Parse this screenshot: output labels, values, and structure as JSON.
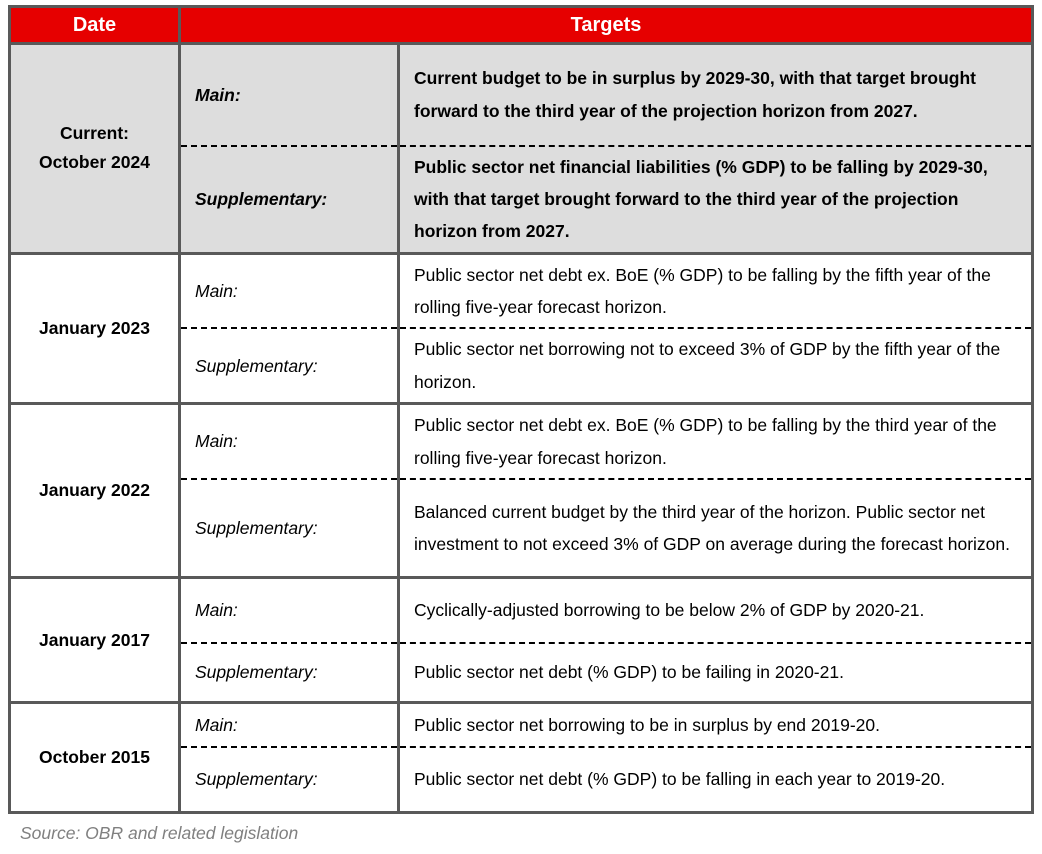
{
  "table": {
    "header": {
      "date": "Date",
      "targets": "Targets"
    },
    "rows": [
      {
        "date_lines": [
          "Current:",
          "October 2024"
        ],
        "main_label": "Main:",
        "main_text": "Current budget to be in surplus by 2029-30, with that target brought forward to the third year of the projection horizon from 2027.",
        "supplementary_label": "Supplementary:",
        "supplementary_text": "Public sector net financial liabilities (% GDP) to be falling by 2029-30, with that target brought forward to the third year of the projection horizon from 2027."
      },
      {
        "date_lines": [
          "January 2023"
        ],
        "main_label": "Main:",
        "main_text": "Public sector net debt ex. BoE (% GDP) to be falling by the fifth year of the rolling five-year forecast horizon.",
        "supplementary_label": "Supplementary:",
        "supplementary_text": "Public sector net borrowing not to exceed 3% of GDP by the fifth year of the horizon."
      },
      {
        "date_lines": [
          "January 2022"
        ],
        "main_label": "Main:",
        "main_text": "Public sector net debt ex. BoE (% GDP) to be falling by the third year of the rolling five-year forecast horizon.",
        "supplementary_label": "Supplementary:",
        "supplementary_text": "Balanced current budget by the third year of the horizon. Public sector net investment to not exceed 3% of GDP on average during the forecast horizon."
      },
      {
        "date_lines": [
          "January 2017"
        ],
        "main_label": "Main:",
        "main_text": "Cyclically-adjusted borrowing to be below 2% of GDP by 2020-21.",
        "supplementary_label": "Supplementary:",
        "supplementary_text": "Public sector net debt (% GDP) to be failing in 2020-21."
      },
      {
        "date_lines": [
          "October 2015"
        ],
        "main_label": "Main:",
        "main_text": "Public sector net borrowing to be in surplus by end 2019-20.",
        "supplementary_label": "Supplementary:",
        "supplementary_text": "Public sector net debt (% GDP) to be falling in each year to 2019-20."
      }
    ]
  },
  "footer": {
    "source": "Source: OBR and related legislation"
  },
  "colors": {
    "header_red": "#E60000",
    "header_text": "#FFFFFF",
    "current_row_bg": "#DDDDDD",
    "border_gray": "#595959",
    "dashed_black": "#000000",
    "source_gray": "#808080"
  }
}
